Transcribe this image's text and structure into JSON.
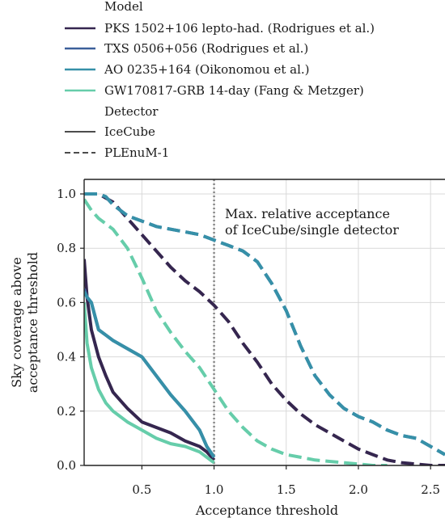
{
  "chart_data": {
    "type": "line",
    "xlabel": "Acceptance threshold",
    "ylabel_lines": [
      "Sky coverage above",
      "acceptance threshold"
    ],
    "xlim": [
      0.1,
      2.6
    ],
    "ylim": [
      0.0,
      1.05
    ],
    "xticks": [
      0.5,
      1.0,
      1.5,
      2.0,
      2.5
    ],
    "yticks": [
      0.0,
      0.2,
      0.4,
      0.6,
      0.8,
      1.0
    ],
    "grid": true,
    "legend": {
      "placement": "above",
      "model_title": "Model",
      "detector_title": "Detector",
      "models": [
        {
          "name": "PKS 1502+106 lepto-had. (Rodrigues et al.)",
          "color": "#35264f"
        },
        {
          "name": "TXS 0506+056 (Rodrigues et al.)",
          "color": "#3b5f9a"
        },
        {
          "name": "AO 0235+164 (Oikonomou et al.)",
          "color": "#3690a8"
        },
        {
          "name": "GW170817-GRB 14-day (Fang & Metzger)",
          "color": "#66cdaa"
        }
      ],
      "detectors": [
        {
          "name": "IceCube",
          "style": "solid"
        },
        {
          "name": "PLEnuM-1",
          "style": "dashed"
        }
      ]
    },
    "vline": {
      "x": 1.0,
      "style": "dotted",
      "color": "#888888"
    },
    "annotation": [
      "Max. relative acceptance",
      "of IceCube/single detector"
    ],
    "series": [
      {
        "model": 0,
        "detector": "IceCube",
        "x": [
          0.1,
          0.12,
          0.15,
          0.2,
          0.25,
          0.3,
          0.35,
          0.4,
          0.5,
          0.6,
          0.7,
          0.8,
          0.9,
          0.95,
          1.0
        ],
        "y": [
          0.76,
          0.62,
          0.5,
          0.4,
          0.33,
          0.27,
          0.24,
          0.21,
          0.16,
          0.14,
          0.12,
          0.09,
          0.07,
          0.05,
          0.02
        ]
      },
      {
        "model": 1,
        "detector": "IceCube",
        "x": [
          0.1,
          0.12,
          0.15,
          0.2,
          0.25,
          0.3,
          0.4,
          0.5,
          0.6,
          0.7,
          0.8,
          0.9,
          0.95,
          1.0
        ],
        "y": [
          0.65,
          0.62,
          0.6,
          0.5,
          0.48,
          0.46,
          0.43,
          0.4,
          0.33,
          0.26,
          0.2,
          0.13,
          0.07,
          0.03
        ]
      },
      {
        "model": 2,
        "detector": "IceCube",
        "x": [
          0.1,
          0.12,
          0.15,
          0.2,
          0.25,
          0.3,
          0.4,
          0.5,
          0.6,
          0.7,
          0.8,
          0.9,
          0.95,
          1.0
        ],
        "y": [
          0.64,
          0.62,
          0.6,
          0.5,
          0.48,
          0.46,
          0.43,
          0.4,
          0.33,
          0.26,
          0.2,
          0.13,
          0.07,
          0.03
        ]
      },
      {
        "model": 3,
        "detector": "IceCube",
        "x": [
          0.1,
          0.12,
          0.15,
          0.2,
          0.25,
          0.3,
          0.35,
          0.4,
          0.5,
          0.6,
          0.7,
          0.8,
          0.9,
          0.95,
          1.0
        ],
        "y": [
          0.6,
          0.45,
          0.36,
          0.28,
          0.23,
          0.2,
          0.18,
          0.16,
          0.13,
          0.1,
          0.08,
          0.07,
          0.05,
          0.03,
          0.01
        ]
      },
      {
        "model": 0,
        "detector": "PLEnuM-1",
        "x": [
          0.1,
          0.2,
          0.3,
          0.4,
          0.5,
          0.6,
          0.7,
          0.8,
          0.9,
          1.0,
          1.1,
          1.2,
          1.3,
          1.4,
          1.5,
          1.6,
          1.7,
          1.8,
          1.9,
          2.0,
          2.1,
          2.2,
          2.3,
          2.4,
          2.5,
          2.6
        ],
        "y": [
          1.0,
          1.0,
          0.97,
          0.91,
          0.85,
          0.79,
          0.73,
          0.68,
          0.64,
          0.59,
          0.53,
          0.45,
          0.38,
          0.3,
          0.24,
          0.19,
          0.15,
          0.12,
          0.09,
          0.06,
          0.04,
          0.02,
          0.01,
          0.005,
          0.0,
          0.0
        ]
      },
      {
        "model": 1,
        "detector": "PLEnuM-1",
        "x": [
          0.1,
          0.2,
          0.25,
          0.3,
          0.4,
          0.5,
          0.6,
          0.7,
          0.8,
          0.9,
          1.0,
          1.1,
          1.2,
          1.3,
          1.4,
          1.5,
          1.6,
          1.7,
          1.8,
          1.9,
          2.0,
          2.1,
          2.2,
          2.3,
          2.4,
          2.5,
          2.6
        ],
        "y": [
          1.0,
          1.0,
          0.99,
          0.96,
          0.92,
          0.9,
          0.88,
          0.87,
          0.86,
          0.85,
          0.83,
          0.81,
          0.79,
          0.75,
          0.67,
          0.57,
          0.44,
          0.33,
          0.26,
          0.21,
          0.18,
          0.16,
          0.13,
          0.11,
          0.1,
          0.07,
          0.04
        ]
      },
      {
        "model": 2,
        "detector": "PLEnuM-1",
        "x": [
          0.1,
          0.2,
          0.25,
          0.3,
          0.4,
          0.5,
          0.6,
          0.7,
          0.8,
          0.9,
          1.0,
          1.1,
          1.2,
          1.3,
          1.4,
          1.5,
          1.6,
          1.7,
          1.8,
          1.9,
          2.0,
          2.1,
          2.2,
          2.3,
          2.4,
          2.5,
          2.6
        ],
        "y": [
          1.0,
          1.0,
          0.99,
          0.96,
          0.92,
          0.9,
          0.88,
          0.87,
          0.86,
          0.85,
          0.83,
          0.81,
          0.79,
          0.75,
          0.67,
          0.57,
          0.44,
          0.33,
          0.26,
          0.21,
          0.18,
          0.16,
          0.13,
          0.11,
          0.1,
          0.07,
          0.04
        ]
      },
      {
        "model": 3,
        "detector": "PLEnuM-1",
        "x": [
          0.1,
          0.15,
          0.2,
          0.3,
          0.4,
          0.5,
          0.6,
          0.7,
          0.8,
          0.9,
          1.0,
          1.1,
          1.2,
          1.3,
          1.4,
          1.5,
          1.6,
          1.7,
          1.8,
          1.9,
          2.0,
          2.1,
          2.2
        ],
        "y": [
          0.98,
          0.94,
          0.91,
          0.87,
          0.8,
          0.69,
          0.57,
          0.49,
          0.42,
          0.36,
          0.28,
          0.2,
          0.14,
          0.09,
          0.06,
          0.04,
          0.03,
          0.02,
          0.015,
          0.01,
          0.005,
          0.0,
          0.0
        ]
      }
    ]
  }
}
